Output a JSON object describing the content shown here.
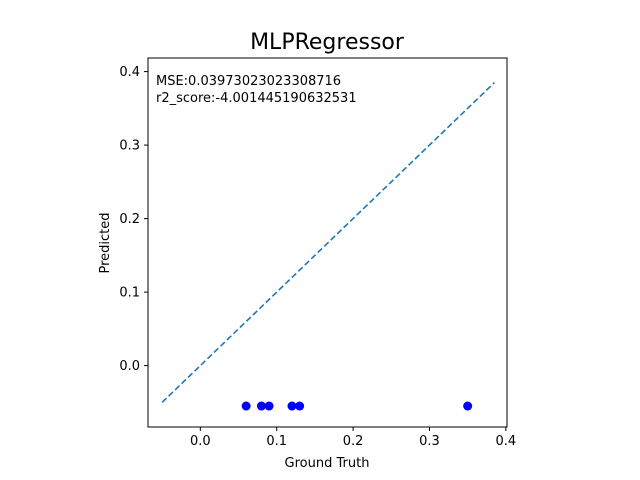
{
  "chart_data": {
    "type": "scatter",
    "title": "MLPRegressor",
    "xlabel": "Ground Truth",
    "ylabel": "Predicted",
    "xlim": [
      -0.0685,
      0.4015
    ],
    "ylim": [
      -0.0835,
      0.4185
    ],
    "xticks": [
      0.0,
      0.1,
      0.2,
      0.3,
      0.4
    ],
    "xtick_labels": [
      "0.0",
      "0.1",
      "0.2",
      "0.3",
      "0.4"
    ],
    "yticks": [
      0.0,
      0.1,
      0.2,
      0.3,
      0.4
    ],
    "ytick_labels": [
      "0.0",
      "0.1",
      "0.2",
      "0.3",
      "0.4"
    ],
    "grid": false,
    "annotations": [
      "MSE:0.03973023023308716",
      "r2_score:-4.001445190632531"
    ],
    "series": [
      {
        "kind": "scatter",
        "color": "#0000ff",
        "x": [
          0.06,
          0.08,
          0.09,
          0.12,
          0.13,
          0.35
        ],
        "y": [
          -0.055,
          -0.055,
          -0.055,
          -0.055,
          -0.055,
          -0.055
        ]
      },
      {
        "kind": "line",
        "style": "dashed",
        "color": "#1f77b4",
        "x": [
          -0.05,
          0.385
        ],
        "y": [
          -0.05,
          0.385
        ]
      }
    ]
  }
}
